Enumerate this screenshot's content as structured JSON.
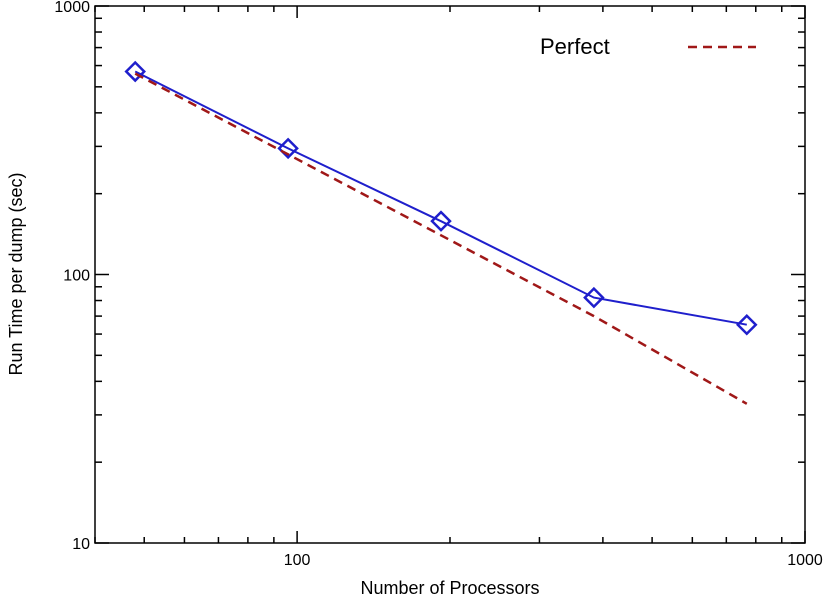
{
  "chart_data": {
    "type": "line",
    "xscale": "log",
    "yscale": "log",
    "xlim": [
      40,
      1000
    ],
    "ylim": [
      10,
      1000
    ],
    "xlabel": "Number of Processors",
    "ylabel": "Run Time per dump (sec)",
    "x_ticks": [
      100,
      1000
    ],
    "x_tick_labels": [
      "100",
      "1000"
    ],
    "y_ticks": [
      10,
      100,
      1000
    ],
    "y_tick_labels": [
      "10",
      "100",
      "1000"
    ],
    "grid": false,
    "legend_position": "top-right",
    "series": [
      {
        "x": [
          48,
          96,
          192,
          384,
          768
        ],
        "y": [
          570,
          295,
          158,
          82,
          65
        ],
        "style": "solid",
        "marker": "diamond",
        "color": "#1f1fcc"
      },
      {
        "name": "Perfect",
        "x": [
          48,
          96,
          192,
          384,
          768
        ],
        "y": [
          560,
          280,
          140,
          70,
          33
        ],
        "style": "dashed",
        "color": "#a01818"
      }
    ]
  }
}
